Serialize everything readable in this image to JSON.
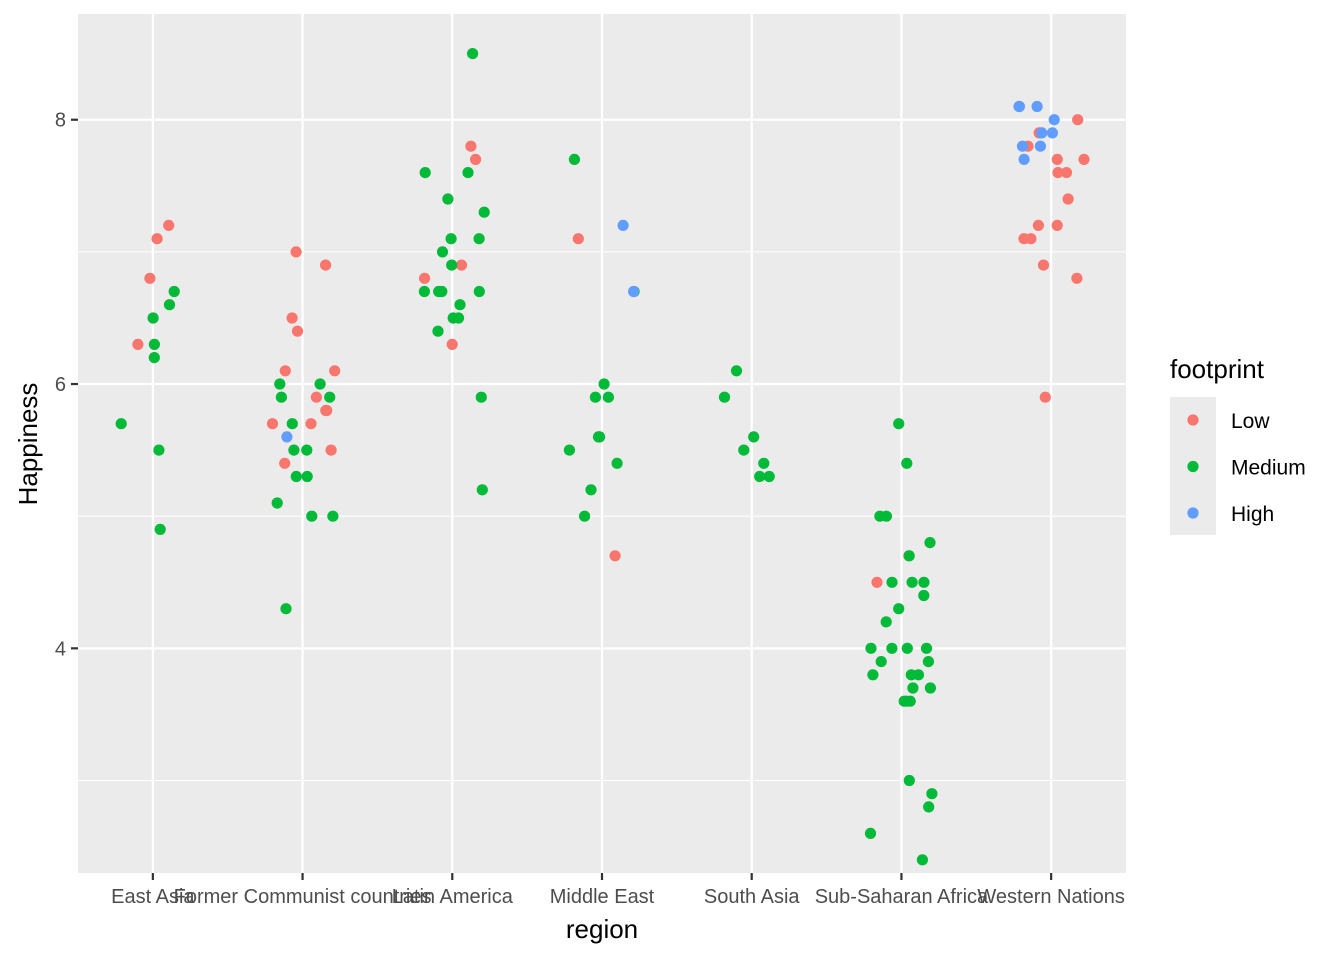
{
  "chart_data": {
    "type": "scatter",
    "xlabel": "region",
    "ylabel": "Happiness",
    "categories": [
      "East Asia",
      "Former Communist countries",
      "Latin America",
      "Middle East",
      "South Asia",
      "Sub-Saharan Africa",
      "Western Nations"
    ],
    "ylim": [
      2.3,
      8.8
    ],
    "y_ticks": [
      4,
      6,
      8
    ],
    "y_tick_labels": [
      "4",
      "6",
      "8"
    ],
    "grid": true,
    "legend": {
      "title": "footprint",
      "position": "right",
      "entries": [
        {
          "label": "Low",
          "color": "#F8766D"
        },
        {
          "label": "Medium",
          "color": "#00BA38"
        },
        {
          "label": "High",
          "color": "#619CFF"
        }
      ]
    },
    "colors": {
      "Low": "#F8766D",
      "Medium": "#00BA38",
      "High": "#619CFF",
      "panel": "#EBEBEB",
      "grid": "#FFFFFF"
    },
    "jitter": true,
    "points": [
      {
        "region": "East Asia",
        "footprint": "Low",
        "happiness": 7.2
      },
      {
        "region": "East Asia",
        "footprint": "Low",
        "happiness": 7.1
      },
      {
        "region": "East Asia",
        "footprint": "Low",
        "happiness": 6.8
      },
      {
        "region": "East Asia",
        "footprint": "Low",
        "happiness": 6.3
      },
      {
        "region": "East Asia",
        "footprint": "Medium",
        "happiness": 6.7
      },
      {
        "region": "East Asia",
        "footprint": "Medium",
        "happiness": 6.6
      },
      {
        "region": "East Asia",
        "footprint": "Medium",
        "happiness": 6.5
      },
      {
        "region": "East Asia",
        "footprint": "Medium",
        "happiness": 6.3
      },
      {
        "region": "East Asia",
        "footprint": "Medium",
        "happiness": 6.2
      },
      {
        "region": "East Asia",
        "footprint": "Medium",
        "happiness": 5.7
      },
      {
        "region": "East Asia",
        "footprint": "Medium",
        "happiness": 5.5
      },
      {
        "region": "East Asia",
        "footprint": "Medium",
        "happiness": 4.9
      },
      {
        "region": "Former Communist countries",
        "footprint": "Low",
        "happiness": 7.0
      },
      {
        "region": "Former Communist countries",
        "footprint": "Low",
        "happiness": 6.9
      },
      {
        "region": "Former Communist countries",
        "footprint": "Low",
        "happiness": 6.5
      },
      {
        "region": "Former Communist countries",
        "footprint": "Low",
        "happiness": 6.4
      },
      {
        "region": "Former Communist countries",
        "footprint": "Low",
        "happiness": 6.1
      },
      {
        "region": "Former Communist countries",
        "footprint": "Low",
        "happiness": 6.1
      },
      {
        "region": "Former Communist countries",
        "footprint": "Low",
        "happiness": 5.9
      },
      {
        "region": "Former Communist countries",
        "footprint": "Low",
        "happiness": 5.8
      },
      {
        "region": "Former Communist countries",
        "footprint": "Low",
        "happiness": 5.8
      },
      {
        "region": "Former Communist countries",
        "footprint": "Low",
        "happiness": 5.7
      },
      {
        "region": "Former Communist countries",
        "footprint": "Low",
        "happiness": 5.7
      },
      {
        "region": "Former Communist countries",
        "footprint": "Low",
        "happiness": 5.5
      },
      {
        "region": "Former Communist countries",
        "footprint": "Low",
        "happiness": 5.4
      },
      {
        "region": "Former Communist countries",
        "footprint": "Medium",
        "happiness": 6.0
      },
      {
        "region": "Former Communist countries",
        "footprint": "Medium",
        "happiness": 6.0
      },
      {
        "region": "Former Communist countries",
        "footprint": "Medium",
        "happiness": 5.9
      },
      {
        "region": "Former Communist countries",
        "footprint": "Medium",
        "happiness": 5.9
      },
      {
        "region": "Former Communist countries",
        "footprint": "Medium",
        "happiness": 5.7
      },
      {
        "region": "Former Communist countries",
        "footprint": "Medium",
        "happiness": 5.5
      },
      {
        "region": "Former Communist countries",
        "footprint": "Medium",
        "happiness": 5.5
      },
      {
        "region": "Former Communist countries",
        "footprint": "Medium",
        "happiness": 5.3
      },
      {
        "region": "Former Communist countries",
        "footprint": "Medium",
        "happiness": 5.3
      },
      {
        "region": "Former Communist countries",
        "footprint": "Medium",
        "happiness": 5.1
      },
      {
        "region": "Former Communist countries",
        "footprint": "Medium",
        "happiness": 5.0
      },
      {
        "region": "Former Communist countries",
        "footprint": "Medium",
        "happiness": 5.0
      },
      {
        "region": "Former Communist countries",
        "footprint": "Medium",
        "happiness": 4.3
      },
      {
        "region": "Former Communist countries",
        "footprint": "High",
        "happiness": 5.6
      },
      {
        "region": "Latin America",
        "footprint": "Low",
        "happiness": 7.8
      },
      {
        "region": "Latin America",
        "footprint": "Low",
        "happiness": 7.7
      },
      {
        "region": "Latin America",
        "footprint": "Low",
        "happiness": 6.9
      },
      {
        "region": "Latin America",
        "footprint": "Low",
        "happiness": 6.8
      },
      {
        "region": "Latin America",
        "footprint": "Low",
        "happiness": 6.3
      },
      {
        "region": "Latin America",
        "footprint": "Medium",
        "happiness": 8.5
      },
      {
        "region": "Latin America",
        "footprint": "Medium",
        "happiness": 7.6
      },
      {
        "region": "Latin America",
        "footprint": "Medium",
        "happiness": 7.6
      },
      {
        "region": "Latin America",
        "footprint": "Medium",
        "happiness": 7.4
      },
      {
        "region": "Latin America",
        "footprint": "Medium",
        "happiness": 7.3
      },
      {
        "region": "Latin America",
        "footprint": "Medium",
        "happiness": 7.1
      },
      {
        "region": "Latin America",
        "footprint": "Medium",
        "happiness": 7.1
      },
      {
        "region": "Latin America",
        "footprint": "Medium",
        "happiness": 7.0
      },
      {
        "region": "Latin America",
        "footprint": "Medium",
        "happiness": 6.9
      },
      {
        "region": "Latin America",
        "footprint": "Medium",
        "happiness": 6.7
      },
      {
        "region": "Latin America",
        "footprint": "Medium",
        "happiness": 6.7
      },
      {
        "region": "Latin America",
        "footprint": "Medium",
        "happiness": 6.7
      },
      {
        "region": "Latin America",
        "footprint": "Medium",
        "happiness": 6.7
      },
      {
        "region": "Latin America",
        "footprint": "Medium",
        "happiness": 6.6
      },
      {
        "region": "Latin America",
        "footprint": "Medium",
        "happiness": 6.5
      },
      {
        "region": "Latin America",
        "footprint": "Medium",
        "happiness": 6.5
      },
      {
        "region": "Latin America",
        "footprint": "Medium",
        "happiness": 6.4
      },
      {
        "region": "Latin America",
        "footprint": "Medium",
        "happiness": 5.9
      },
      {
        "region": "Latin America",
        "footprint": "Medium",
        "happiness": 5.2
      },
      {
        "region": "Middle East",
        "footprint": "Low",
        "happiness": 7.1
      },
      {
        "region": "Middle East",
        "footprint": "Low",
        "happiness": 4.7
      },
      {
        "region": "Middle East",
        "footprint": "Medium",
        "happiness": 7.7
      },
      {
        "region": "Middle East",
        "footprint": "Medium",
        "happiness": 6.7
      },
      {
        "region": "Middle East",
        "footprint": "Medium",
        "happiness": 6.0
      },
      {
        "region": "Middle East",
        "footprint": "Medium",
        "happiness": 5.9
      },
      {
        "region": "Middle East",
        "footprint": "Medium",
        "happiness": 5.9
      },
      {
        "region": "Middle East",
        "footprint": "Medium",
        "happiness": 5.6
      },
      {
        "region": "Middle East",
        "footprint": "Medium",
        "happiness": 5.6
      },
      {
        "region": "Middle East",
        "footprint": "Medium",
        "happiness": 5.5
      },
      {
        "region": "Middle East",
        "footprint": "Medium",
        "happiness": 5.4
      },
      {
        "region": "Middle East",
        "footprint": "Medium",
        "happiness": 5.2
      },
      {
        "region": "Middle East",
        "footprint": "Medium",
        "happiness": 5.0
      },
      {
        "region": "Middle East",
        "footprint": "High",
        "happiness": 7.2
      },
      {
        "region": "Middle East",
        "footprint": "High",
        "happiness": 6.7
      },
      {
        "region": "South Asia",
        "footprint": "Medium",
        "happiness": 6.1
      },
      {
        "region": "South Asia",
        "footprint": "Medium",
        "happiness": 5.9
      },
      {
        "region": "South Asia",
        "footprint": "Medium",
        "happiness": 5.6
      },
      {
        "region": "South Asia",
        "footprint": "Medium",
        "happiness": 5.5
      },
      {
        "region": "South Asia",
        "footprint": "Medium",
        "happiness": 5.4
      },
      {
        "region": "South Asia",
        "footprint": "Medium",
        "happiness": 5.3
      },
      {
        "region": "South Asia",
        "footprint": "Medium",
        "happiness": 5.3
      },
      {
        "region": "Sub-Saharan Africa",
        "footprint": "Low",
        "happiness": 4.7
      },
      {
        "region": "Sub-Saharan Africa",
        "footprint": "Low",
        "happiness": 4.5
      },
      {
        "region": "Sub-Saharan Africa",
        "footprint": "Medium",
        "happiness": 5.7
      },
      {
        "region": "Sub-Saharan Africa",
        "footprint": "Medium",
        "happiness": 5.4
      },
      {
        "region": "Sub-Saharan Africa",
        "footprint": "Medium",
        "happiness": 5.0
      },
      {
        "region": "Sub-Saharan Africa",
        "footprint": "Medium",
        "happiness": 5.0
      },
      {
        "region": "Sub-Saharan Africa",
        "footprint": "Medium",
        "happiness": 4.8
      },
      {
        "region": "Sub-Saharan Africa",
        "footprint": "Medium",
        "happiness": 4.7
      },
      {
        "region": "Sub-Saharan Africa",
        "footprint": "Medium",
        "happiness": 4.5
      },
      {
        "region": "Sub-Saharan Africa",
        "footprint": "Medium",
        "happiness": 4.5
      },
      {
        "region": "Sub-Saharan Africa",
        "footprint": "Medium",
        "happiness": 4.5
      },
      {
        "region": "Sub-Saharan Africa",
        "footprint": "Medium",
        "happiness": 4.4
      },
      {
        "region": "Sub-Saharan Africa",
        "footprint": "Medium",
        "happiness": 4.3
      },
      {
        "region": "Sub-Saharan Africa",
        "footprint": "Medium",
        "happiness": 4.2
      },
      {
        "region": "Sub-Saharan Africa",
        "footprint": "Medium",
        "happiness": 4.0
      },
      {
        "region": "Sub-Saharan Africa",
        "footprint": "Medium",
        "happiness": 4.0
      },
      {
        "region": "Sub-Saharan Africa",
        "footprint": "Medium",
        "happiness": 4.0
      },
      {
        "region": "Sub-Saharan Africa",
        "footprint": "Medium",
        "happiness": 4.0
      },
      {
        "region": "Sub-Saharan Africa",
        "footprint": "Medium",
        "happiness": 3.9
      },
      {
        "region": "Sub-Saharan Africa",
        "footprint": "Medium",
        "happiness": 3.9
      },
      {
        "region": "Sub-Saharan Africa",
        "footprint": "Medium",
        "happiness": 3.8
      },
      {
        "region": "Sub-Saharan Africa",
        "footprint": "Medium",
        "happiness": 3.8
      },
      {
        "region": "Sub-Saharan Africa",
        "footprint": "Medium",
        "happiness": 3.8
      },
      {
        "region": "Sub-Saharan Africa",
        "footprint": "Medium",
        "happiness": 3.7
      },
      {
        "region": "Sub-Saharan Africa",
        "footprint": "Medium",
        "happiness": 3.7
      },
      {
        "region": "Sub-Saharan Africa",
        "footprint": "Medium",
        "happiness": 3.6
      },
      {
        "region": "Sub-Saharan Africa",
        "footprint": "Medium",
        "happiness": 3.6
      },
      {
        "region": "Sub-Saharan Africa",
        "footprint": "Medium",
        "happiness": 3.6
      },
      {
        "region": "Sub-Saharan Africa",
        "footprint": "Medium",
        "happiness": 3.0
      },
      {
        "region": "Sub-Saharan Africa",
        "footprint": "Medium",
        "happiness": 2.9
      },
      {
        "region": "Sub-Saharan Africa",
        "footprint": "Medium",
        "happiness": 2.8
      },
      {
        "region": "Sub-Saharan Africa",
        "footprint": "Medium",
        "happiness": 2.6
      },
      {
        "region": "Sub-Saharan Africa",
        "footprint": "Medium",
        "happiness": 2.4
      },
      {
        "region": "Western Nations",
        "footprint": "Low",
        "happiness": 8.0
      },
      {
        "region": "Western Nations",
        "footprint": "Low",
        "happiness": 7.9
      },
      {
        "region": "Western Nations",
        "footprint": "Low",
        "happiness": 7.8
      },
      {
        "region": "Western Nations",
        "footprint": "Low",
        "happiness": 7.7
      },
      {
        "region": "Western Nations",
        "footprint": "Low",
        "happiness": 7.7
      },
      {
        "region": "Western Nations",
        "footprint": "Low",
        "happiness": 7.6
      },
      {
        "region": "Western Nations",
        "footprint": "Low",
        "happiness": 7.6
      },
      {
        "region": "Western Nations",
        "footprint": "Low",
        "happiness": 7.4
      },
      {
        "region": "Western Nations",
        "footprint": "Low",
        "happiness": 7.2
      },
      {
        "region": "Western Nations",
        "footprint": "Low",
        "happiness": 7.2
      },
      {
        "region": "Western Nations",
        "footprint": "Low",
        "happiness": 7.1
      },
      {
        "region": "Western Nations",
        "footprint": "Low",
        "happiness": 7.1
      },
      {
        "region": "Western Nations",
        "footprint": "Low",
        "happiness": 6.9
      },
      {
        "region": "Western Nations",
        "footprint": "Low",
        "happiness": 6.8
      },
      {
        "region": "Western Nations",
        "footprint": "Low",
        "happiness": 5.9
      },
      {
        "region": "Western Nations",
        "footprint": "High",
        "happiness": 8.1
      },
      {
        "region": "Western Nations",
        "footprint": "High",
        "happiness": 8.1
      },
      {
        "region": "Western Nations",
        "footprint": "High",
        "happiness": 8.1
      },
      {
        "region": "Western Nations",
        "footprint": "High",
        "happiness": 8.0
      },
      {
        "region": "Western Nations",
        "footprint": "High",
        "happiness": 7.9
      },
      {
        "region": "Western Nations",
        "footprint": "High",
        "happiness": 7.9
      },
      {
        "region": "Western Nations",
        "footprint": "High",
        "happiness": 7.8
      },
      {
        "region": "Western Nations",
        "footprint": "High",
        "happiness": 7.8
      },
      {
        "region": "Western Nations",
        "footprint": "High",
        "happiness": 7.7
      }
    ]
  }
}
